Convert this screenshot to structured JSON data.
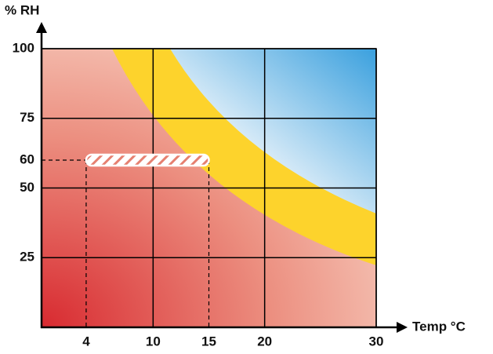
{
  "chart_data": {
    "type": "zone",
    "ylabel": "% RH",
    "xlabel": "Temp °C",
    "xlim": [
      0,
      30
    ],
    "ylim": [
      0,
      100
    ],
    "xticks": [
      4,
      10,
      15,
      20,
      30
    ],
    "yticks": [
      25,
      50,
      60,
      75,
      100
    ],
    "xgrid": [
      10,
      20,
      30
    ],
    "ygrid": [
      25,
      50,
      75,
      100
    ],
    "highlight": {
      "x": [
        4,
        15
      ],
      "y": 60
    }
  }
}
